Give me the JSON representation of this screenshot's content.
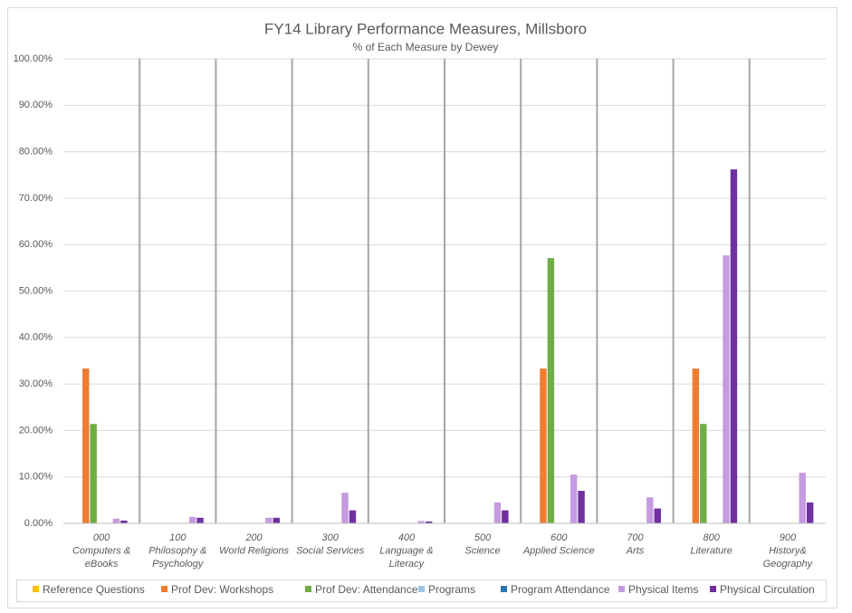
{
  "chart_data": {
    "type": "bar",
    "title": "FY14 Library Performance Measures, Millsboro",
    "subtitle": "% of Each Measure by Dewey",
    "categories": [
      [
        "000",
        "Computers &",
        "eBooks"
      ],
      [
        "100",
        "Philosophy &",
        "Psychology"
      ],
      [
        "200",
        "World Religions"
      ],
      [
        "300",
        "Social Services"
      ],
      [
        "400",
        "Language &",
        "Literacy"
      ],
      [
        "500",
        "Science"
      ],
      [
        "600",
        "Applied Science"
      ],
      [
        "700",
        "Arts"
      ],
      [
        "800",
        "Literature"
      ],
      [
        "900",
        "History&",
        "Geography"
      ]
    ],
    "series": [
      {
        "name": "Reference Questions",
        "color": "#ffc000",
        "values": [
          0,
          0,
          0,
          0,
          0,
          0,
          0,
          0,
          0,
          0
        ]
      },
      {
        "name": "Prof Dev: Workshops",
        "color": "#ed7d31",
        "values": [
          33.33,
          0,
          0,
          0,
          0,
          0,
          33.33,
          0,
          33.33,
          0
        ]
      },
      {
        "name": "Prof Dev: Attendance",
        "color": "#70ad47",
        "values": [
          21.4,
          0,
          0,
          0,
          0,
          0,
          57.1,
          0,
          21.4,
          0
        ]
      },
      {
        "name": "Programs",
        "color": "#9dc3e6",
        "values": [
          0,
          0,
          0,
          0,
          0,
          0,
          0,
          0,
          0,
          0
        ]
      },
      {
        "name": "Program Attendance",
        "color": "#2e75b6",
        "values": [
          0,
          0,
          0,
          0,
          0,
          0,
          0,
          0,
          0,
          0
        ]
      },
      {
        "name": "Physical Items",
        "color": "#c49be0",
        "values": [
          1.0,
          1.4,
          1.2,
          6.6,
          0.5,
          4.5,
          10.5,
          5.6,
          57.7,
          10.9
        ]
      },
      {
        "name": "Physical Circulation",
        "color": "#7030a0",
        "values": [
          0.6,
          1.2,
          1.2,
          2.8,
          0.4,
          2.8,
          7.0,
          3.2,
          76.2,
          4.5
        ]
      }
    ],
    "ylim": [
      0,
      100
    ],
    "yticks": [
      {
        "value": 0,
        "label": "0.00%"
      },
      {
        "value": 10,
        "label": "10.00%"
      },
      {
        "value": 20,
        "label": "20.00%"
      },
      {
        "value": 30,
        "label": "30.00%"
      },
      {
        "value": 40,
        "label": "40.00%"
      },
      {
        "value": 50,
        "label": "50.00%"
      },
      {
        "value": 60,
        "label": "60.00%"
      },
      {
        "value": 70,
        "label": "70.00%"
      },
      {
        "value": 80,
        "label": "80.00%"
      },
      {
        "value": 90,
        "label": "90.00%"
      },
      {
        "value": 100,
        "label": "100.00%"
      }
    ],
    "grid": true,
    "legend": "bottom"
  }
}
